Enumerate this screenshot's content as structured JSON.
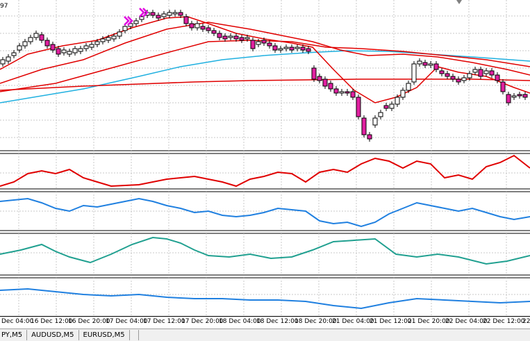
{
  "window": {
    "price_label": "97"
  },
  "colors": {
    "grid": "#c8c8c8",
    "bull_candle": "#ffffff",
    "bear_candle": "#e020a0",
    "ma_red": "#e00000",
    "ma_cyan": "#20b0e0",
    "panel_red": "#e00000",
    "panel_blue": "#2080e0",
    "panel_teal": "#20a090",
    "arrow_magenta": "#e000e0"
  },
  "time_axis": {
    "labels": [
      "Dec 04:00",
      "16 Dec 12:00",
      "16 Dec 20:00",
      "17 Dec 04:00",
      "17 Dec 12:00",
      "17 Dec 20:00",
      "18 Dec 04:00",
      "18 Dec 12:00",
      "18 Dec 20:00",
      "21 Dec 04:00",
      "21 Dec 12:00",
      "21 Dec 20:00",
      "22 Dec 04:00",
      "22 Dec 12:00",
      "22"
    ]
  },
  "tabs": [
    {
      "label": "PY,M5"
    },
    {
      "label": "AUDUSD,M5"
    },
    {
      "label": "EURUSD,M5"
    },
    {
      "label": ""
    }
  ],
  "icons": {
    "signal_arrows": "double-chevron-down-arrow",
    "scroll_marker": "triangle-marker"
  }
}
